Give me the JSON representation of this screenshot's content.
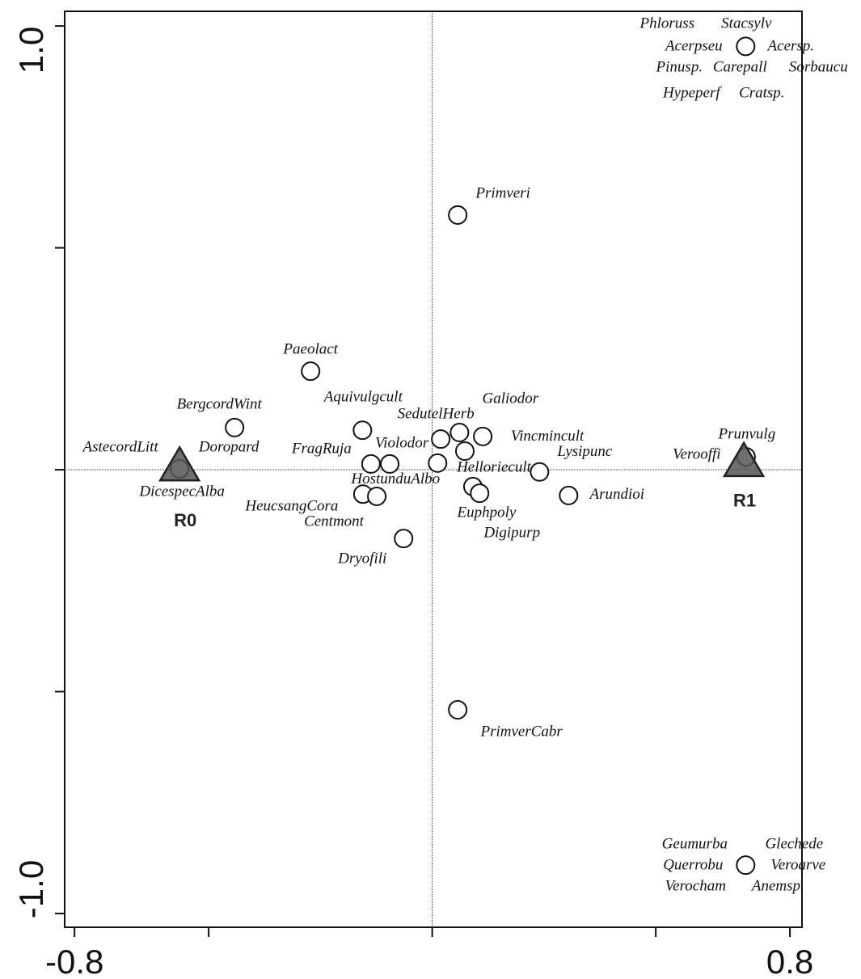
{
  "chart_data": {
    "type": "scatter",
    "xlim": [
      -0.822,
      0.827
    ],
    "ylim": [
      -1.031,
      1.033
    ],
    "xticks": [
      -0.8,
      0.8
    ],
    "xminorticks": [
      -0.5,
      0,
      0.5
    ],
    "yticks": [
      {
        "value": 1,
        "label": "1.0"
      },
      {
        "value": -1,
        "label": "-1.0"
      }
    ],
    "yminorticks": [
      0.5,
      0,
      -0.5
    ],
    "points": [
      {
        "x": 0.701,
        "y": 0.954,
        "labels": [
          "Phloruss",
          "Stacsylv",
          "Acerpseu",
          "Acersp.",
          "Pinusp.",
          "Carepall",
          "Sorbaucu",
          "Hypeperf",
          "Cratsp."
        ]
      },
      {
        "x": 0.057,
        "y": 0.574,
        "labels": [
          "Primveri"
        ]
      },
      {
        "x": -0.272,
        "y": 0.222,
        "labels": [
          "Paeolact"
        ]
      },
      {
        "x": -0.442,
        "y": 0.095,
        "labels": [
          "BergcordWint"
        ]
      },
      {
        "x": -0.156,
        "y": 0.089,
        "labels": [
          "Aquivulgcult"
        ]
      },
      {
        "x": 0.019,
        "y": 0.069,
        "labels": [
          "SedutelHerb"
        ]
      },
      {
        "x": 0.061,
        "y": 0.084,
        "labels": [
          "Galiodor"
        ]
      },
      {
        "x": 0.073,
        "y": 0.042,
        "labels": [
          "Helloriecult"
        ]
      },
      {
        "x": 0.113,
        "y": 0.075,
        "labels": [
          "Vincmincult"
        ]
      },
      {
        "x": -0.137,
        "y": 0.013,
        "labels": [
          "FragRuja"
        ]
      },
      {
        "x": -0.095,
        "y": 0.013,
        "labels": [
          "Violodor"
        ]
      },
      {
        "x": 0.012,
        "y": 0.015,
        "labels": [
          "HostunduAlbo"
        ]
      },
      {
        "x": -0.155,
        "y": -0.055,
        "labels": [
          "HeucsangCora"
        ]
      },
      {
        "x": -0.124,
        "y": -0.06,
        "labels": [
          "Centmont"
        ]
      },
      {
        "x": 0.091,
        "y": -0.038,
        "labels": [
          "Euphpoly"
        ]
      },
      {
        "x": 0.106,
        "y": -0.053,
        "labels": [
          "Digipurp"
        ]
      },
      {
        "x": 0.24,
        "y": -0.005,
        "labels": [
          "Lysipunc"
        ]
      },
      {
        "x": 0.305,
        "y": -0.058,
        "labels": [
          "Arundioi"
        ]
      },
      {
        "x": -0.064,
        "y": -0.155,
        "labels": [
          "Dryofili"
        ]
      },
      {
        "x": 0.702,
        "y": 0.029,
        "labels": [
          "Prunvulg",
          "Verooffi"
        ]
      },
      {
        "x": 0.057,
        "y": -0.541,
        "labels": [
          "PrimverCabr"
        ]
      },
      {
        "x": 0.701,
        "y": -0.891,
        "labels": [
          "Geumurba",
          "Glechede",
          "Querrobu",
          "Veroarve",
          "Verocham",
          "Anemsp."
        ]
      },
      {
        "x": -0.565,
        "y": 0.002,
        "labels": [
          "AstecordLitt",
          "Doropard",
          "DicespecAlba"
        ]
      }
    ],
    "centroids": [
      {
        "name": "R0",
        "x": -0.565,
        "y": 0.005
      },
      {
        "name": "R1",
        "x": 0.697,
        "y": 0.015
      }
    ],
    "marker_color": "#555555"
  }
}
